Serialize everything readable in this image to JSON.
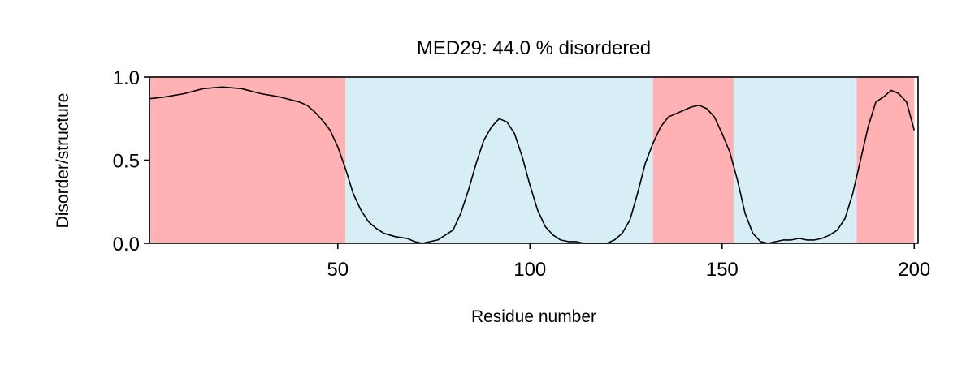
{
  "chart_data": {
    "type": "line",
    "title": "MED29: 44.0 % disordered",
    "xlabel": "Residue number",
    "ylabel": "Disorder/structure",
    "xlim": [
      1,
      201
    ],
    "ylim": [
      0,
      1
    ],
    "xticks": [
      50,
      100,
      150,
      200
    ],
    "xtick_labels": [
      "50",
      "100",
      "150",
      "200"
    ],
    "yticks": [
      0,
      0.5,
      1
    ],
    "ytick_labels": [
      "0.0",
      "0.5",
      "1.0"
    ],
    "grid": false,
    "legend": "none",
    "colors": {
      "disordered": "#ffb1b3",
      "structured": "#d8eef7",
      "line": "#000000"
    },
    "regions": [
      {
        "type": "disordered",
        "start": 1,
        "end": 52
      },
      {
        "type": "structured",
        "start": 52,
        "end": 132
      },
      {
        "type": "disordered",
        "start": 132,
        "end": 153
      },
      {
        "type": "structured",
        "start": 153,
        "end": 185
      },
      {
        "type": "disordered",
        "start": 185,
        "end": 200
      }
    ],
    "series": [
      {
        "x": [
          1,
          5,
          10,
          15,
          20,
          25,
          30,
          35,
          40,
          42,
          44,
          46,
          48,
          50,
          52,
          54,
          56,
          58,
          60,
          62,
          65,
          68,
          70,
          72,
          74,
          76,
          78,
          80,
          82,
          84,
          86,
          88,
          90,
          92,
          94,
          96,
          98,
          100,
          102,
          104,
          106,
          108,
          110,
          112,
          114,
          116,
          118,
          120,
          122,
          124,
          126,
          128,
          130,
          132,
          134,
          136,
          138,
          140,
          142,
          144,
          146,
          148,
          150,
          152,
          154,
          156,
          158,
          160,
          162,
          164,
          166,
          168,
          170,
          172,
          174,
          176,
          178,
          180,
          182,
          184,
          186,
          188,
          190,
          192,
          194,
          196,
          198,
          200
        ],
        "y": [
          0.87,
          0.88,
          0.9,
          0.93,
          0.94,
          0.93,
          0.9,
          0.88,
          0.85,
          0.83,
          0.79,
          0.74,
          0.68,
          0.58,
          0.45,
          0.3,
          0.2,
          0.13,
          0.09,
          0.06,
          0.04,
          0.03,
          0.01,
          0.0,
          0.01,
          0.02,
          0.05,
          0.08,
          0.18,
          0.32,
          0.48,
          0.62,
          0.7,
          0.75,
          0.73,
          0.66,
          0.52,
          0.35,
          0.2,
          0.1,
          0.05,
          0.02,
          0.01,
          0.01,
          0.0,
          0.0,
          0.0,
          0.0,
          0.02,
          0.06,
          0.14,
          0.3,
          0.48,
          0.6,
          0.7,
          0.76,
          0.78,
          0.8,
          0.82,
          0.83,
          0.81,
          0.76,
          0.66,
          0.55,
          0.38,
          0.18,
          0.06,
          0.01,
          0.0,
          0.01,
          0.02,
          0.02,
          0.03,
          0.02,
          0.02,
          0.03,
          0.05,
          0.08,
          0.15,
          0.3,
          0.5,
          0.7,
          0.85,
          0.88,
          0.92,
          0.9,
          0.85,
          0.68
        ]
      }
    ]
  }
}
